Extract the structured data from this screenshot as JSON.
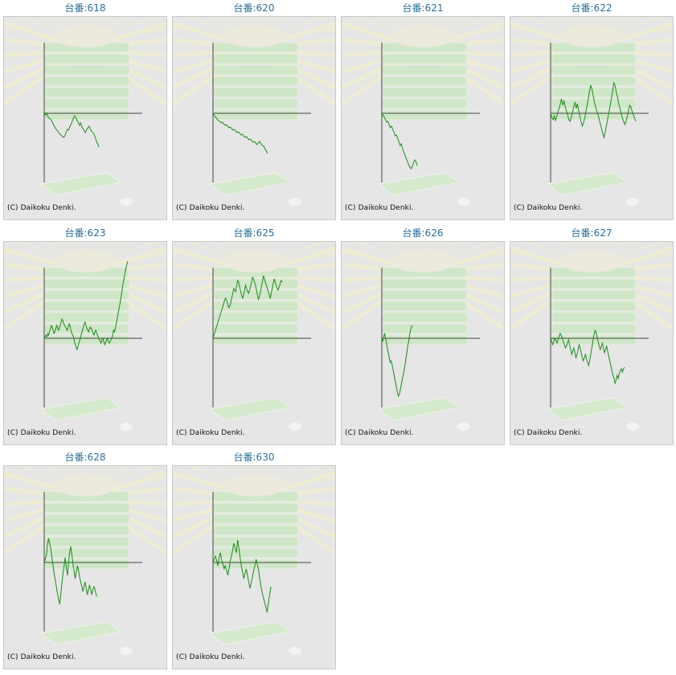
{
  "copyright": "(C) Daikoku Denki.",
  "colors": {
    "line": "#1e8a1e",
    "axis": "#444444",
    "title": "#2b6f9a",
    "panel": "#e6e6e6"
  },
  "chart_data": [
    {
      "type": "line",
      "title": "台番:618",
      "values": [
        0,
        -2,
        0,
        -4,
        -6,
        -7,
        -9,
        -12,
        -15,
        -18,
        -20,
        -22,
        -24,
        -26,
        -27,
        -29,
        -30,
        -28,
        -24,
        -20,
        -21,
        -17,
        -14,
        -10,
        -6,
        -3,
        -5,
        -9,
        -11,
        -15,
        -12,
        -17,
        -19,
        -22,
        -24,
        -20,
        -18,
        -16,
        -20,
        -22,
        -24,
        -26,
        -30,
        -35,
        -38,
        -42
      ]
    },
    {
      "type": "line",
      "title": "台番:620",
      "values": [
        0,
        -3,
        -5,
        -7,
        -9,
        -10,
        -12,
        -11,
        -13,
        -15,
        -14,
        -16,
        -18,
        -17,
        -19,
        -21,
        -20,
        -22,
        -24,
        -23,
        -25,
        -27,
        -26,
        -28,
        -30,
        -29,
        -31,
        -33,
        -32,
        -34,
        -36,
        -35,
        -37,
        -39,
        -37,
        -35,
        -38,
        -40,
        -41,
        -44,
        -47,
        -50
      ]
    },
    {
      "type": "line",
      "title": "台番:621",
      "values": [
        0,
        -2,
        -5,
        -8,
        -11,
        -10,
        -14,
        -18,
        -16,
        -20,
        -24,
        -28,
        -27,
        -31,
        -35,
        -40,
        -38,
        -44,
        -48,
        -52,
        -56,
        -60,
        -64,
        -67,
        -69,
        -66,
        -62,
        -58,
        -60,
        -65
      ]
    },
    {
      "type": "line",
      "title": "台番:622",
      "values": [
        0,
        -5,
        -8,
        -3,
        -9,
        -4,
        2,
        6,
        12,
        18,
        10,
        15,
        8,
        3,
        -2,
        -8,
        -10,
        -5,
        2,
        8,
        14,
        6,
        12,
        4,
        -4,
        -10,
        -16,
        -12,
        -6,
        2,
        10,
        18,
        28,
        35,
        30,
        22,
        14,
        8,
        2,
        -2,
        -8,
        -14,
        -20,
        -26,
        -30,
        -22,
        -14,
        -6,
        2,
        10,
        18,
        28,
        38,
        34,
        26,
        20,
        12,
        6,
        0,
        -6,
        -10,
        -14,
        -10,
        -4,
        4,
        10,
        8,
        2,
        -2,
        -6,
        -10
      ]
    },
    {
      "type": "line",
      "title": "台番:623",
      "values": [
        0,
        2,
        4,
        2,
        6,
        4,
        8,
        12,
        16,
        14,
        10,
        6,
        8,
        12,
        16,
        14,
        10,
        12,
        16,
        20,
        24,
        22,
        18,
        16,
        14,
        12,
        10,
        14,
        18,
        16,
        10,
        6,
        4,
        2,
        -4,
        -8,
        -12,
        -14,
        -10,
        -6,
        -2,
        2,
        6,
        10,
        14,
        18,
        20,
        16,
        12,
        10,
        8,
        12,
        14,
        12,
        10,
        6,
        4,
        8,
        10,
        6,
        4,
        0,
        -2,
        -4,
        -6,
        -2,
        0,
        -4,
        -8,
        -6,
        -2,
        0,
        -4,
        -6,
        -4,
        -2,
        0,
        4,
        10,
        8,
        12,
        18,
        24,
        30,
        36,
        42,
        48,
        56,
        64,
        70,
        76,
        82,
        88,
        92,
        96
      ]
    },
    {
      "type": "line",
      "title": "台番:625",
      "values": [
        0,
        4,
        8,
        12,
        16,
        20,
        24,
        28,
        32,
        36,
        40,
        44,
        48,
        50,
        46,
        42,
        38,
        40,
        44,
        50,
        56,
        62,
        60,
        58,
        66,
        72,
        70,
        64,
        58,
        54,
        50,
        54,
        60,
        66,
        62,
        58,
        56,
        60,
        64,
        70,
        76,
        74,
        70,
        66,
        60,
        54,
        48,
        52,
        58,
        64,
        70,
        78,
        74,
        70,
        66,
        62,
        58,
        54,
        50,
        56,
        62,
        68,
        74,
        70,
        66,
        62,
        60,
        64,
        68,
        72,
        70
      ]
    },
    {
      "type": "line",
      "title": "台番:626",
      "values": [
        0,
        -4,
        2,
        6,
        0,
        -6,
        -12,
        -18,
        -24,
        -30,
        -28,
        -32,
        -38,
        -44,
        -50,
        -56,
        -62,
        -68,
        -72,
        -70,
        -64,
        -58,
        -52,
        -46,
        -40,
        -34,
        -26,
        -18,
        -10,
        -4,
        4,
        10,
        14,
        16
      ]
    },
    {
      "type": "line",
      "title": "台番:627",
      "values": [
        0,
        -4,
        -8,
        -4,
        0,
        -2,
        -6,
        -2,
        2,
        6,
        4,
        0,
        -4,
        -8,
        -12,
        -10,
        -6,
        -2,
        -8,
        -14,
        -20,
        -16,
        -12,
        -18,
        -24,
        -20,
        -14,
        -8,
        -12,
        -18,
        -24,
        -28,
        -24,
        -20,
        -26,
        -30,
        -34,
        -28,
        -20,
        -12,
        -4,
        4,
        10,
        8,
        2,
        -4,
        -10,
        -14,
        -10,
        -6,
        -12,
        -18,
        -14,
        -10,
        -16,
        -22,
        -28,
        -34,
        -40,
        -46,
        -50,
        -56,
        -52,
        -46,
        -50,
        -44,
        -40,
        -38,
        -42,
        -38,
        -36
      ]
    },
    {
      "type": "line",
      "title": "台番:628",
      "values": [
        0,
        4,
        10,
        22,
        30,
        24,
        16,
        6,
        -4,
        -14,
        -22,
        -30,
        -38,
        -46,
        -52,
        -40,
        -26,
        -14,
        -4,
        6,
        -6,
        -16,
        0,
        12,
        20,
        10,
        -2,
        -10,
        -20,
        -12,
        -4,
        -10,
        -18,
        -24,
        -30,
        -36,
        -30,
        -24,
        -32,
        -40,
        -34,
        -28,
        -34,
        -40,
        -34,
        -30,
        -34,
        -40,
        -42
      ]
    },
    {
      "type": "line",
      "title": "台番:630",
      "values": [
        0,
        4,
        8,
        2,
        -4,
        6,
        12,
        4,
        -2,
        -8,
        -4,
        -10,
        -16,
        -8,
        2,
        8,
        16,
        24,
        18,
        12,
        28,
        18,
        6,
        -4,
        -12,
        -20,
        -14,
        -8,
        -16,
        -24,
        -32,
        -26,
        -18,
        -10,
        -4,
        4,
        -2,
        -10,
        -20,
        -30,
        -38,
        -44,
        -50,
        -56,
        -62,
        -50,
        -40,
        -30
      ]
    }
  ]
}
